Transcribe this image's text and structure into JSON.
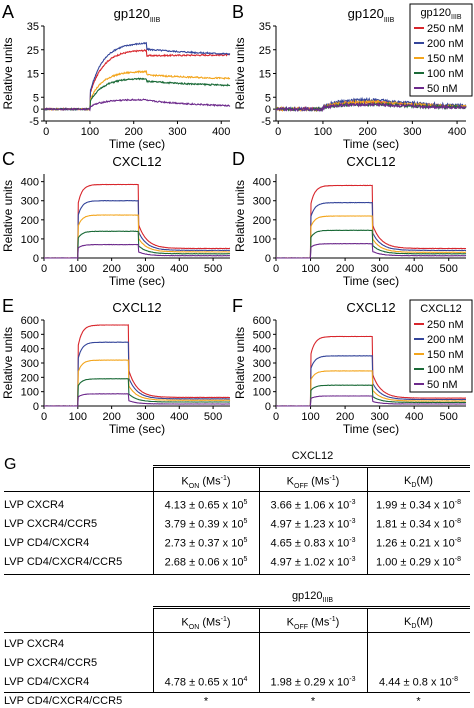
{
  "colors": {
    "c250": "#d8262c",
    "c200": "#34459a",
    "c150": "#f3a51c",
    "c100": "#1a6a37",
    "c50": "#6d2a8c"
  },
  "panels": {
    "A": {
      "letter": "A",
      "title": "gp120IIIB",
      "title_main": "gp120",
      "title_sub": "IIIB"
    },
    "B": {
      "letter": "B",
      "title": "gp120IIIB",
      "title_main": "gp120",
      "title_sub": "IIIB"
    },
    "C": {
      "letter": "C",
      "title": "CXCL12"
    },
    "D": {
      "letter": "D",
      "title": "CXCL12"
    },
    "E": {
      "letter": "E",
      "title": "CXCL12"
    },
    "F": {
      "letter": "F",
      "title": "CXCL12"
    }
  },
  "legend_top": {
    "title_main": "gp120",
    "title_sub": "IIIB",
    "items": [
      "250 nM",
      "200 nM",
      "150 nM",
      "100 nM",
      "50 nM"
    ]
  },
  "legend_bottom": {
    "title": "CXCL12",
    "items": [
      "250 nM",
      "200 nM",
      "150 nM",
      "100 nM",
      "50 nM"
    ]
  },
  "chart_data": [
    {
      "panel": "A",
      "type": "line",
      "title": "gp120IIIB",
      "xlabel": "Time (sec)",
      "ylabel": "Relative units",
      "xlim": [
        -5,
        420
      ],
      "ylim": [
        -5,
        35
      ],
      "xticks": [
        0,
        100,
        200,
        300,
        400
      ],
      "yticks": [
        -5,
        0,
        5,
        15,
        25,
        35
      ],
      "inj_start": 100,
      "inj_end": 230,
      "series": [
        {
          "name": "250 nM",
          "plateau": 25,
          "dissoc_end": 23
        },
        {
          "name": "200 nM",
          "plateau": 28,
          "dissoc_end": 22
        },
        {
          "name": "150 nM",
          "plateau": 16,
          "dissoc_end": 12
        },
        {
          "name": "100 nM",
          "plateau": 13,
          "dissoc_end": 9
        },
        {
          "name": "50 nM",
          "plateau": 4,
          "dissoc_end": 0
        }
      ]
    },
    {
      "panel": "B",
      "type": "line",
      "title": "gp120IIIB",
      "xlabel": "Time (sec)",
      "ylabel": "Relative units",
      "xlim": [
        -5,
        420
      ],
      "ylim": [
        -5,
        35
      ],
      "xticks": [
        0,
        100,
        200,
        300,
        400
      ],
      "yticks": [
        -5,
        0,
        5,
        15,
        25,
        35
      ],
      "inj_start": 100,
      "inj_end": 230,
      "series": [
        {
          "name": "250 nM",
          "plateau": 3,
          "dissoc_end": 0
        },
        {
          "name": "200 nM",
          "plateau": 4,
          "dissoc_end": 0
        },
        {
          "name": "150 nM",
          "plateau": 3,
          "dissoc_end": 0
        },
        {
          "name": "100 nM",
          "plateau": 2,
          "dissoc_end": 0
        },
        {
          "name": "50 nM",
          "plateau": 2,
          "dissoc_end": 0
        }
      ]
    },
    {
      "panel": "C",
      "type": "line",
      "title": "CXCL12",
      "xlabel": "Time (sec)",
      "ylabel": "Relative units",
      "xlim": [
        0,
        550
      ],
      "ylim": [
        0,
        440
      ],
      "xticks": [
        0,
        100,
        200,
        300,
        400,
        500
      ],
      "yticks": [
        0,
        100,
        200,
        300,
        400
      ],
      "inj_start": 100,
      "inj_end": 280,
      "series": [
        {
          "name": "250 nM",
          "plateau": 385,
          "dissoc_end": 50
        },
        {
          "name": "200 nM",
          "plateau": 300,
          "dissoc_end": 40
        },
        {
          "name": "150 nM",
          "plateau": 225,
          "dissoc_end": 32
        },
        {
          "name": "100 nM",
          "plateau": 140,
          "dissoc_end": 22
        },
        {
          "name": "50 nM",
          "plateau": 70,
          "dissoc_end": 12
        }
      ]
    },
    {
      "panel": "D",
      "type": "line",
      "title": "CXCL12",
      "xlabel": "Time (sec)",
      "ylabel": "Relative units",
      "xlim": [
        0,
        550
      ],
      "ylim": [
        0,
        440
      ],
      "xticks": [
        0,
        100,
        200,
        300,
        400,
        500
      ],
      "yticks": [
        0,
        100,
        200,
        300,
        400
      ],
      "inj_start": 100,
      "inj_end": 280,
      "series": [
        {
          "name": "250 nM",
          "plateau": 380,
          "dissoc_end": 50
        },
        {
          "name": "200 nM",
          "plateau": 290,
          "dissoc_end": 40
        },
        {
          "name": "150 nM",
          "plateau": 220,
          "dissoc_end": 30
        },
        {
          "name": "100 nM",
          "plateau": 145,
          "dissoc_end": 22
        },
        {
          "name": "50 nM",
          "plateau": 75,
          "dissoc_end": 12
        }
      ]
    },
    {
      "panel": "E",
      "type": "line",
      "title": "CXCL12",
      "xlabel": "Time (sec)",
      "ylabel": "Relative units",
      "xlim": [
        0,
        550
      ],
      "ylim": [
        0,
        600
      ],
      "xticks": [
        0,
        100,
        200,
        300,
        400,
        500
      ],
      "yticks": [
        0,
        100,
        200,
        300,
        400,
        500,
        600
      ],
      "inj_start": 100,
      "inj_end": 250,
      "series": [
        {
          "name": "250 nM",
          "plateau": 565,
          "dissoc_end": 60
        },
        {
          "name": "200 nM",
          "plateau": 445,
          "dissoc_end": 50
        },
        {
          "name": "150 nM",
          "plateau": 320,
          "dissoc_end": 40
        },
        {
          "name": "100 nM",
          "plateau": 190,
          "dissoc_end": 28
        },
        {
          "name": "50 nM",
          "plateau": 85,
          "dissoc_end": 14
        }
      ]
    },
    {
      "panel": "F",
      "type": "line",
      "title": "CXCL12",
      "xlabel": "Time (sec)",
      "ylabel": "Relative units",
      "xlim": [
        0,
        550
      ],
      "ylim": [
        0,
        600
      ],
      "xticks": [
        0,
        100,
        200,
        300,
        400,
        500
      ],
      "yticks": [
        0,
        100,
        200,
        300,
        400,
        500,
        600
      ],
      "inj_start": 100,
      "inj_end": 280,
      "series": [
        {
          "name": "250 nM",
          "plateau": 485,
          "dissoc_end": 55
        },
        {
          "name": "200 nM",
          "plateau": 350,
          "dissoc_end": 45
        },
        {
          "name": "150 nM",
          "plateau": 245,
          "dissoc_end": 35
        },
        {
          "name": "100 nM",
          "plateau": 145,
          "dissoc_end": 25
        },
        {
          "name": "50 nM",
          "plateau": 70,
          "dissoc_end": 14
        }
      ]
    },
    {
      "panel": "G",
      "type": "table",
      "letter": "G",
      "cxcl12": {
        "group": "CXCL12",
        "headers": [
          {
            "main": "K",
            "sub": "ON",
            "unit": " (Ms",
            "sup": "-1",
            "close": ")"
          },
          {
            "main": "K",
            "sub": "OFF",
            "unit": " (Ms",
            "sup": "-1",
            "close": ")"
          },
          {
            "main": "K",
            "sub": "D",
            "unit": "(M)",
            "sup": "",
            "close": ""
          }
        ],
        "rows": [
          {
            "label": "LVP CXCR4",
            "kon": "4.13 ± 0.65 x 10",
            "kon_exp": "5",
            "koff": "3.66 ± 1.06 x 10",
            "koff_exp": "-3",
            "kd": "1.99 ± 0.34 x 10",
            "kd_exp": "-8"
          },
          {
            "label": "LVP CXCR4/CCR5",
            "kon": "3.79 ± 0.39 x 10",
            "kon_exp": "5",
            "koff": "4.97 ± 1.23 x 10",
            "koff_exp": "-3",
            "kd": "1.81 ± 0.34 x 10",
            "kd_exp": "-8"
          },
          {
            "label": "LVP CD4/CXCR4",
            "kon": "2.73 ± 0.37 x 10",
            "kon_exp": "5",
            "koff": "4.65 ± 0.83 x 10",
            "koff_exp": "-3",
            "kd": "1.26 ± 0.21 x 10",
            "kd_exp": "-8"
          },
          {
            "label": "LVP CD4/CXCR4/CCR5",
            "kon": "2.68 ± 0.06 x 10",
            "kon_exp": "5",
            "koff": "4.97 ± 1.02 x 10",
            "koff_exp": "-3",
            "kd": "1.00 ± 0.29 x 10",
            "kd_exp": "-8"
          }
        ]
      },
      "gp120": {
        "group_main": "gp120",
        "group_sub": "IIIB",
        "rows": [
          {
            "label": "LVP CXCR4",
            "kon": "",
            "kon_exp": "",
            "koff": "",
            "koff_exp": "",
            "kd": "",
            "kd_exp": ""
          },
          {
            "label": "LVP CXCR4/CCR5",
            "kon": "",
            "kon_exp": "",
            "koff": "",
            "koff_exp": "",
            "kd": "",
            "kd_exp": ""
          },
          {
            "label": "LVP CD4/CXCR4",
            "kon": "4.78 ± 0.65 x 10",
            "kon_exp": "4",
            "koff": "1.98 ± 0.29 x 10",
            "koff_exp": "-3",
            "kd": "4.44 ± 0.8 x 10",
            "kd_exp": "-8"
          },
          {
            "label": "LVP CD4/CXCR4/CCR5",
            "kon": "*",
            "kon_exp": "",
            "koff": "*",
            "koff_exp": "",
            "kd": "*",
            "kd_exp": ""
          }
        ]
      }
    }
  ]
}
